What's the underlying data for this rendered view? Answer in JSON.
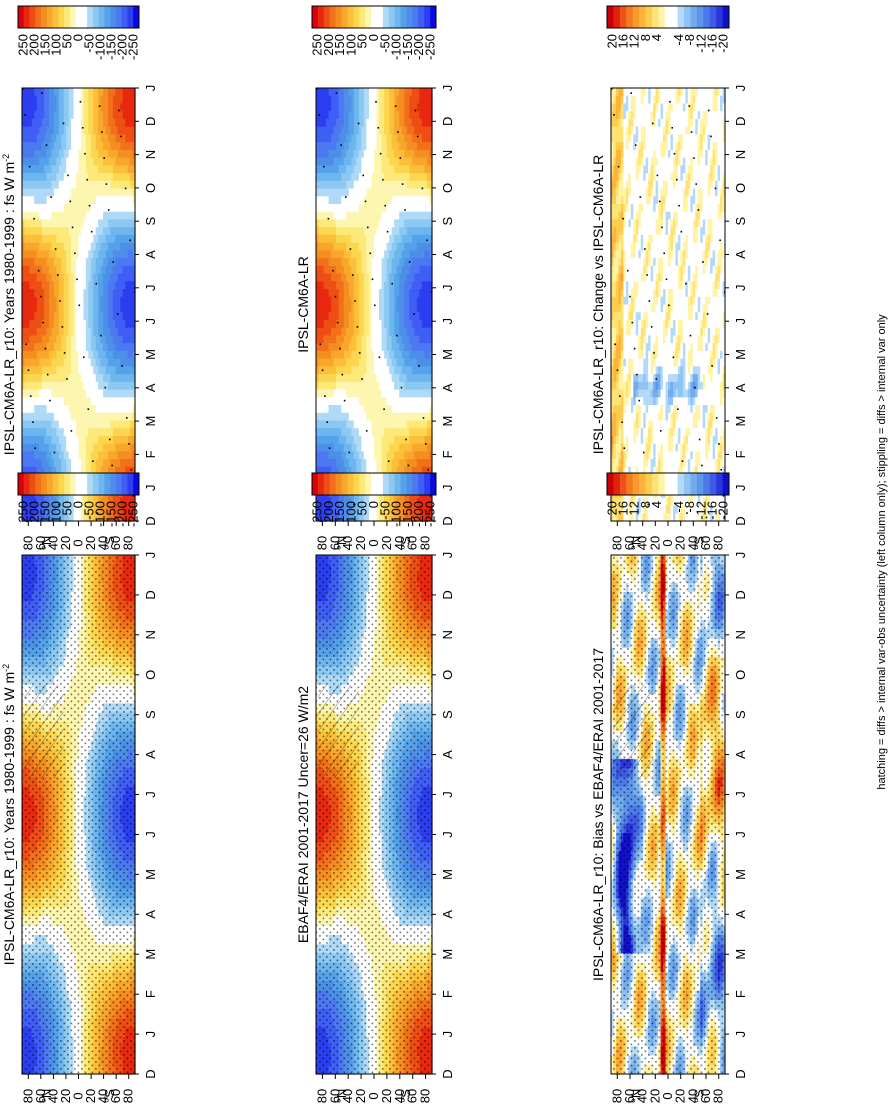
{
  "figure": {
    "footer": "hatching = diffs > internal var-obs uncertainty (left column only); stippling = diffs > internal var only"
  },
  "chart_data": [
    {
      "type": "heatmap",
      "title": "IPSL-CM6A-LR_r10: Years 1980-1999 : fs W m",
      "title_sup": "-2",
      "x": [
        "D",
        "J",
        "F",
        "M",
        "A",
        "M",
        "J",
        "J",
        "A",
        "S",
        "O",
        "N",
        "D",
        "J"
      ],
      "y": [
        "80",
        "60",
        "40",
        "20",
        "0",
        "20",
        "40",
        "60",
        "80"
      ],
      "ylabel_north": "°N",
      "ylabel_south": "°S",
      "hatching": true,
      "stippling": true,
      "colorbar": {
        "ticks": [
          "-250",
          "-200",
          "-150",
          "-100",
          "-50",
          "0",
          "50",
          "100",
          "150",
          "200",
          "250"
        ],
        "range": [
          -275,
          275
        ]
      },
      "colors": {
        "positive": "#f5a623",
        "negative": "#4d97e0"
      }
    },
    {
      "type": "heatmap",
      "title": "IPSL-CM6A-LR_r10: Years 1980-1999 : fs W m",
      "title_sup": "-2",
      "x": [
        "D",
        "J",
        "F",
        "M",
        "A",
        "M",
        "J",
        "J",
        "A",
        "S",
        "O",
        "N",
        "D",
        "J"
      ],
      "y": [
        "80",
        "60",
        "40",
        "20",
        "0",
        "20",
        "40",
        "60",
        "80"
      ],
      "ylabel_north": "°N",
      "ylabel_south": "°S",
      "hatching": false,
      "stippling": true,
      "colorbar": {
        "ticks": [
          "-250",
          "-200",
          "-150",
          "-100",
          "-50",
          "0",
          "50",
          "100",
          "150",
          "200",
          "250"
        ],
        "range": [
          -275,
          275
        ]
      }
    },
    {
      "type": "heatmap",
      "title": "EBAF4/ERAI 2001-2017 Uncer=26 W/m2",
      "title_sup": "",
      "x": [
        "D",
        "J",
        "F",
        "M",
        "A",
        "M",
        "J",
        "J",
        "A",
        "S",
        "O",
        "N",
        "D",
        "J"
      ],
      "y": [
        "80",
        "60",
        "40",
        "20",
        "0",
        "20",
        "40",
        "60",
        "80"
      ],
      "ylabel_north": "°N",
      "ylabel_south": "°S",
      "hatching": true,
      "stippling": true,
      "colorbar": {
        "ticks": [
          "-250",
          "-200",
          "-150",
          "-100",
          "-50",
          "0",
          "50",
          "100",
          "150",
          "200",
          "250"
        ],
        "range": [
          -275,
          275
        ]
      }
    },
    {
      "type": "heatmap",
      "title": "IPSL-CM6A-LR",
      "title_sup": "",
      "x": [
        "D",
        "J",
        "F",
        "M",
        "A",
        "M",
        "J",
        "J",
        "A",
        "S",
        "O",
        "N",
        "D",
        "J"
      ],
      "y": [
        "80",
        "60",
        "40",
        "20",
        "0",
        "20",
        "40",
        "60",
        "80"
      ],
      "ylabel_north": "°N",
      "ylabel_south": "°S",
      "hatching": false,
      "stippling": true,
      "colorbar": {
        "ticks": [
          "-250",
          "-200",
          "-150",
          "-100",
          "-50",
          "0",
          "50",
          "100",
          "150",
          "200",
          "250"
        ],
        "range": [
          -275,
          275
        ]
      }
    },
    {
      "type": "heatmap",
      "title": "IPSL-CM6A-LR_r10: Bias vs EBAF4/ERAI 2001-2017",
      "title_sup": "",
      "x": [
        "D",
        "J",
        "F",
        "M",
        "A",
        "M",
        "J",
        "J",
        "A",
        "S",
        "O",
        "N",
        "D",
        "J"
      ],
      "y": [
        "80",
        "60",
        "40",
        "20",
        "0",
        "20",
        "40",
        "60",
        "80"
      ],
      "ylabel_north": "°N",
      "ylabel_south": "°S",
      "hatching": true,
      "stippling": true,
      "colorbar": {
        "ticks": [
          "-20",
          "-16",
          "-12",
          "-8",
          "-4",
          "4",
          "8",
          "12",
          "16",
          "20"
        ],
        "range": [
          -22,
          22
        ]
      }
    },
    {
      "type": "heatmap",
      "title": "IPSL-CM6A-LR_r10: Change vs IPSL-CM6A-LR",
      "title_sup": "",
      "x": [
        "D",
        "J",
        "F",
        "M",
        "A",
        "M",
        "J",
        "J",
        "A",
        "S",
        "O",
        "N",
        "D",
        "J"
      ],
      "y": [
        "80",
        "60",
        "40",
        "20",
        "0",
        "20",
        "40",
        "60",
        "80"
      ],
      "ylabel_north": "°N",
      "ylabel_south": "°S",
      "hatching": false,
      "stippling": true,
      "colorbar": {
        "ticks": [
          "-20",
          "-16",
          "-12",
          "-8",
          "-4",
          "4",
          "8",
          "12",
          "16",
          "20"
        ],
        "range": [
          -22,
          22
        ]
      }
    }
  ]
}
